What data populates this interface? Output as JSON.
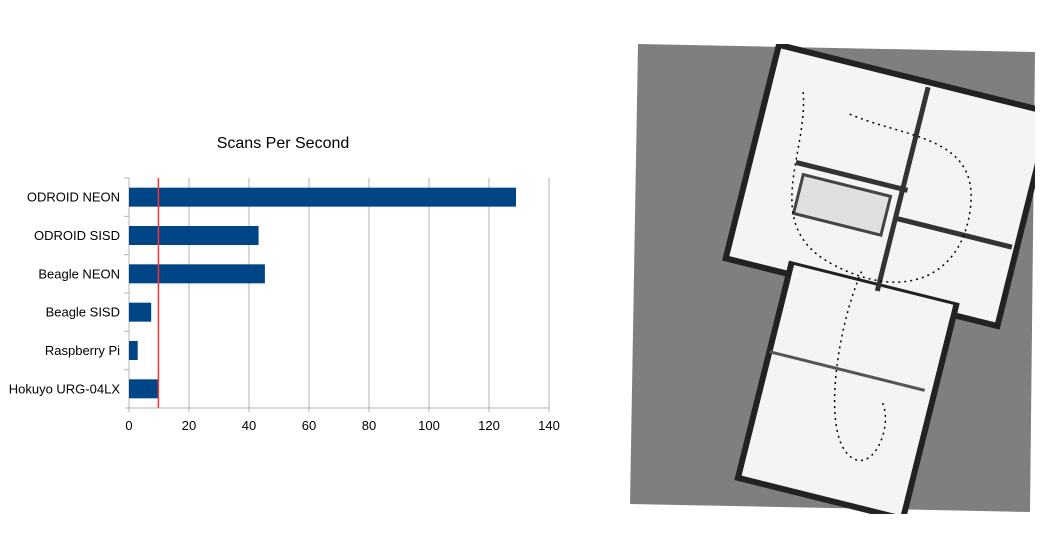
{
  "chart_data": {
    "type": "bar",
    "orientation": "horizontal",
    "title": "Scans Per Second",
    "categories": [
      "ODROID NEON",
      "ODROID SISD",
      "Beagle NEON",
      "Beagle SISD",
      "Raspberry Pi",
      "Hokuyo URG-04LX"
    ],
    "values": [
      129,
      43.2,
      45.3,
      7.4,
      2.9,
      9.8
    ],
    "xlim": [
      0,
      140
    ],
    "xticks": [
      "0",
      "20",
      "40",
      "60",
      "80",
      "100",
      "120",
      "140"
    ],
    "xtick_values": [
      0,
      20,
      40,
      60,
      80,
      100,
      120,
      140
    ],
    "reference_line": 9.8,
    "grid": "vertical",
    "colors": {
      "bar": "#004586",
      "reference_line": "#ff3333",
      "grid": "#b3b3b3"
    }
  },
  "map_image": {
    "description_icon": "occupancy-grid-map"
  }
}
